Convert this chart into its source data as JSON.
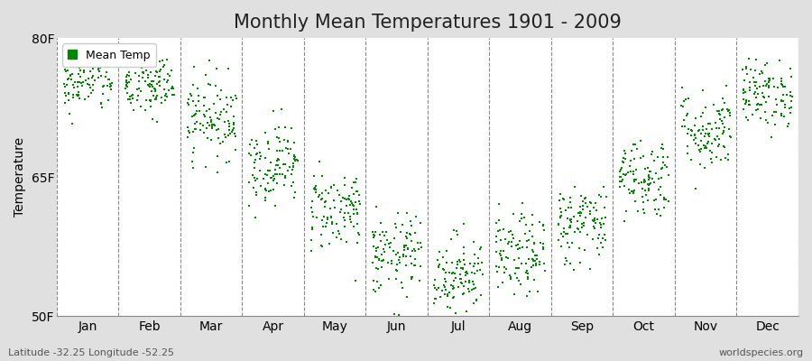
{
  "title": "Monthly Mean Temperatures 1901 - 2009",
  "ylabel": "Temperature",
  "ylim": [
    50,
    80
  ],
  "yticks": [
    50,
    65,
    80
  ],
  "ytick_labels": [
    "50F",
    "65F",
    "80F"
  ],
  "months": [
    "Jan",
    "Feb",
    "Mar",
    "Apr",
    "May",
    "Jun",
    "Jul",
    "Aug",
    "Sep",
    "Oct",
    "Nov",
    "Dec"
  ],
  "month_means": [
    75.5,
    74.8,
    71.5,
    66.5,
    61.5,
    56.5,
    54.5,
    56.5,
    60.0,
    65.0,
    70.0,
    74.0
  ],
  "month_stds": [
    1.8,
    1.8,
    2.2,
    2.2,
    2.2,
    2.2,
    2.2,
    2.2,
    2.2,
    2.2,
    2.2,
    1.8
  ],
  "n_years": 109,
  "marker_color": "#008800",
  "marker_size": 4,
  "figure_bg": "#E0E0E0",
  "axes_bg": "#FFFFFF",
  "grid_color": "#888888",
  "legend_label": "Mean Temp",
  "footer_left": "Latitude -32.25 Longitude -52.25",
  "footer_right": "worldspecies.org",
  "footer_fontsize": 8,
  "title_fontsize": 15,
  "axis_fontsize": 10,
  "seed": 42
}
